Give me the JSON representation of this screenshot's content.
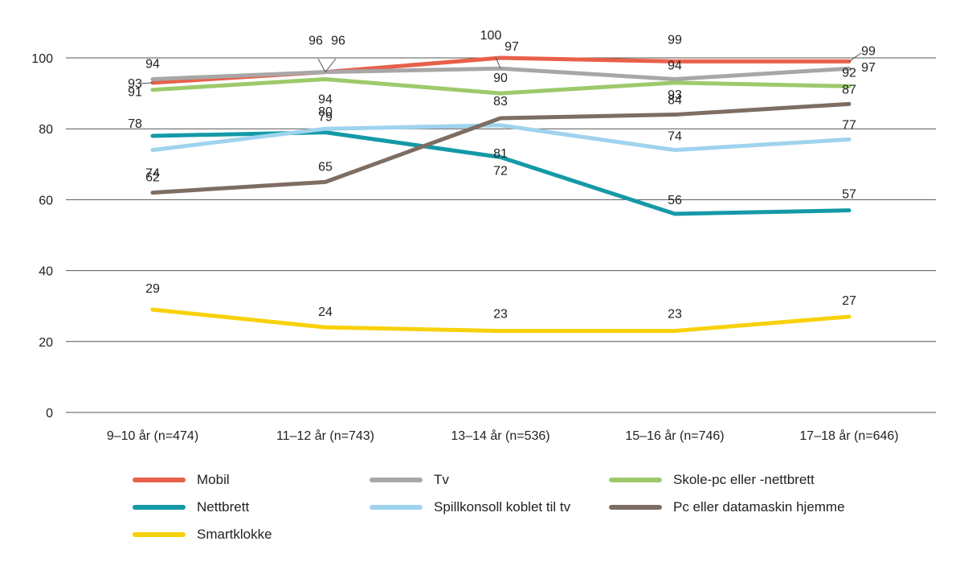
{
  "chart_data": {
    "type": "line",
    "categories": [
      "9–10 år (n=474)",
      "11–12 år (n=743)",
      "13–14 år (n=536)",
      "15–16 år (n=746)",
      "17–18 år (n=646)"
    ],
    "ylim": [
      0,
      100
    ],
    "yticks": [
      0,
      20,
      40,
      60,
      80,
      100
    ],
    "grid": true,
    "legend_position": "bottom",
    "series": [
      {
        "name": "Mobil",
        "color": "#e8604a",
        "values": [
          93,
          96,
          100,
          99,
          99
        ]
      },
      {
        "name": "Tv",
        "color": "#a7a7a7",
        "values": [
          94,
          96,
          97,
          94,
          97
        ]
      },
      {
        "name": "Skole-pc eller -nettbrett",
        "color": "#9dc96b",
        "values": [
          91,
          94,
          90,
          93,
          92
        ]
      },
      {
        "name": "Nettbrett",
        "color": "#1499a7",
        "values": [
          78,
          79,
          72,
          56,
          57
        ]
      },
      {
        "name": "Spillkonsoll koblet til tv",
        "color": "#9fd3ee",
        "values": [
          74,
          80,
          81,
          74,
          77
        ]
      },
      {
        "name": "Pc eller datamaskin hjemme",
        "color": "#7d6d63",
        "values": [
          62,
          65,
          83,
          84,
          87
        ]
      },
      {
        "name": "Smartklokke",
        "color": "#f7d10a",
        "values": [
          29,
          24,
          23,
          23,
          27
        ]
      }
    ]
  }
}
